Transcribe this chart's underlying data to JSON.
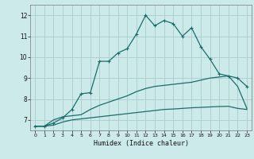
{
  "xlabel": "Humidex (Indice chaleur)",
  "bg_color": "#cceaea",
  "line_color": "#1a6e6a",
  "grid_color": "#aacccc",
  "xlim": [
    -0.5,
    23.5
  ],
  "ylim": [
    6.5,
    12.5
  ],
  "yticks": [
    7,
    8,
    9,
    10,
    11,
    12
  ],
  "xticks": [
    0,
    1,
    2,
    3,
    4,
    5,
    6,
    7,
    8,
    9,
    10,
    11,
    12,
    13,
    14,
    15,
    16,
    17,
    18,
    19,
    20,
    21,
    22,
    23
  ],
  "line1_x": [
    0,
    1,
    2,
    3,
    4,
    5,
    6,
    7,
    8,
    9,
    10,
    11,
    12,
    13,
    14,
    15,
    16,
    17,
    18,
    19,
    20,
    21,
    22,
    23
  ],
  "line1_y": [
    6.7,
    6.7,
    6.85,
    7.1,
    7.5,
    8.25,
    8.3,
    9.8,
    9.8,
    10.2,
    10.4,
    11.1,
    12.0,
    11.5,
    11.75,
    11.6,
    11.0,
    11.4,
    10.5,
    9.9,
    9.2,
    9.1,
    9.0,
    8.6
  ],
  "line2_x": [
    0,
    1,
    2,
    3,
    4,
    5,
    6,
    7,
    8,
    9,
    10,
    11,
    12,
    13,
    14,
    15,
    16,
    17,
    18,
    19,
    20,
    21,
    22,
    23
  ],
  "line2_y": [
    6.7,
    6.7,
    7.0,
    7.15,
    7.2,
    7.25,
    7.5,
    7.7,
    7.85,
    8.0,
    8.15,
    8.35,
    8.5,
    8.6,
    8.65,
    8.7,
    8.75,
    8.8,
    8.9,
    9.0,
    9.05,
    9.1,
    8.6,
    7.55
  ],
  "line3_x": [
    0,
    1,
    2,
    3,
    4,
    5,
    6,
    7,
    8,
    9,
    10,
    11,
    12,
    13,
    14,
    15,
    16,
    17,
    18,
    19,
    20,
    21,
    22,
    23
  ],
  "line3_y": [
    6.7,
    6.7,
    6.75,
    6.9,
    7.0,
    7.05,
    7.1,
    7.15,
    7.2,
    7.25,
    7.3,
    7.35,
    7.4,
    7.45,
    7.5,
    7.52,
    7.55,
    7.58,
    7.6,
    7.62,
    7.64,
    7.65,
    7.55,
    7.5
  ]
}
